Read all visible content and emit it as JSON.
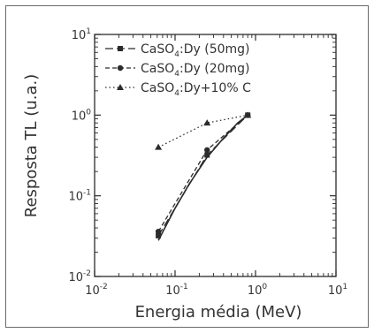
{
  "chart_data": {
    "type": "line",
    "xlabel": "Energia média (MeV)",
    "ylabel": "Resposta TL (u.a.)",
    "xscale": "log",
    "yscale": "log",
    "xlim": [
      0.01,
      10
    ],
    "ylim": [
      0.01,
      10
    ],
    "x_ticks": [
      {
        "base": "10",
        "exp": "-2"
      },
      {
        "base": "10",
        "exp": "-1"
      },
      {
        "base": "10",
        "exp": "0"
      },
      {
        "base": "10",
        "exp": "1"
      }
    ],
    "y_ticks": [
      {
        "base": "10",
        "exp": "-2"
      },
      {
        "base": "10",
        "exp": "-1"
      },
      {
        "base": "10",
        "exp": "0"
      },
      {
        "base": "10",
        "exp": "1"
      }
    ],
    "legend_position": "top-left",
    "series": [
      {
        "name": "CaSO4:Dy (50mg)",
        "legend": {
          "pre": "CaSO",
          "sub": "4",
          "post": ":Dy (50mg)"
        },
        "marker": "square",
        "line": "dash",
        "x": [
          0.062,
          0.25,
          0.8
        ],
        "y": [
          0.032,
          0.32,
          1.0
        ]
      },
      {
        "name": "CaSO4:Dy (20mg)",
        "legend": {
          "pre": "CaSO",
          "sub": "4",
          "post": ":Dy (20mg)"
        },
        "marker": "circle",
        "line": "short-dash",
        "x": [
          0.062,
          0.25,
          0.8
        ],
        "y": [
          0.036,
          0.37,
          1.0
        ]
      },
      {
        "name": "CaSO4:Dy+10% C",
        "legend": {
          "pre": "CaSO",
          "sub": "4",
          "post": ":Dy+10% C"
        },
        "marker": "triangle",
        "line": "dot",
        "x": [
          0.062,
          0.25,
          0.8
        ],
        "y": [
          0.4,
          0.8,
          1.0
        ]
      }
    ],
    "fit_curve": {
      "line": "solid",
      "x": [
        0.062,
        0.1,
        0.15,
        0.25,
        0.4,
        0.6,
        0.8
      ],
      "y": [
        0.028,
        0.07,
        0.14,
        0.3,
        0.52,
        0.8,
        1.0
      ]
    },
    "colors": {
      "series": "#2b2b2b",
      "axis": "#2b2b2b",
      "frame": "#6a6a6a"
    }
  }
}
